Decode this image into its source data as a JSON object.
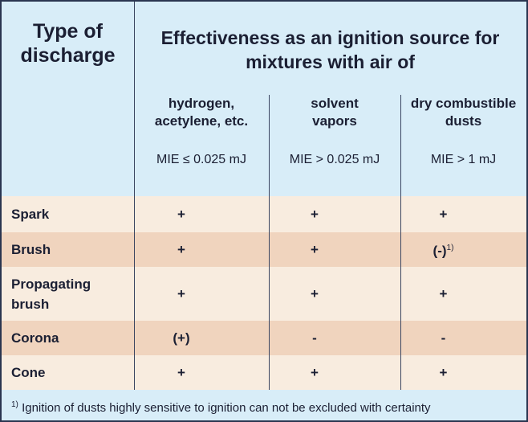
{
  "table": {
    "header": {
      "first": "Type of discharge",
      "group": "Effectiveness as an ignition source for mixtures with air of",
      "columns": [
        {
          "name": "hydrogen, acetylene, etc.",
          "mie": "MIE ≤ 0.025 mJ"
        },
        {
          "name": "solvent vapors",
          "mie": "MIE > 0.025 mJ"
        },
        {
          "name": "dry combustible dusts",
          "mie": "MIE > 1 mJ"
        }
      ]
    },
    "rows": [
      [
        "Spark",
        "+",
        "+",
        "+"
      ],
      [
        "Brush",
        "+",
        "+",
        {
          "text": "(-)",
          "note": "1)"
        }
      ],
      [
        "Propagating brush",
        "+",
        "+",
        "+"
      ],
      [
        "Corona",
        "(+)",
        "-",
        "-"
      ],
      [
        "Cone",
        "+",
        "+",
        "+"
      ]
    ]
  },
  "footnote": {
    "mark": "1)",
    "text": "Ignition of dusts highly sensitive to ignition can not be excluded with certainty"
  }
}
